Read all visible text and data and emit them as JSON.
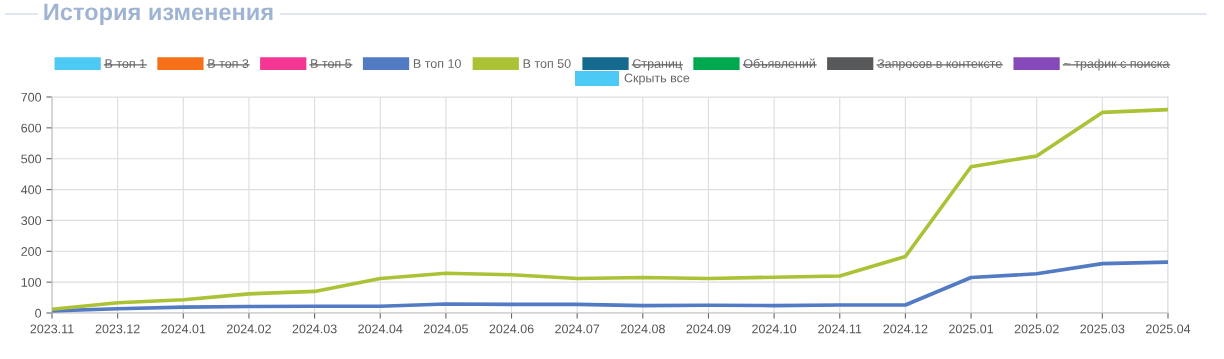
{
  "chart_data": {
    "type": "line",
    "title": "История изменения",
    "categories": [
      "2023.11",
      "2023.12",
      "2024.01",
      "2024.02",
      "2024.03",
      "2024.04",
      "2024.05",
      "2024.06",
      "2024.07",
      "2024.08",
      "2024.09",
      "2024.10",
      "2024.11",
      "2024.12",
      "2025.01",
      "2025.02",
      "2025.03",
      "2025.04"
    ],
    "series": [
      {
        "name": "В топ 1",
        "color": "#4dc9f6",
        "values": [
          null,
          null,
          null,
          null,
          null,
          null,
          null,
          null,
          null,
          null,
          null,
          null,
          null,
          null,
          null,
          null,
          null,
          null
        ]
      },
      {
        "name": "В топ 3",
        "color": "#f67019",
        "values": [
          null,
          null,
          null,
          null,
          null,
          null,
          null,
          null,
          null,
          null,
          null,
          null,
          null,
          null,
          null,
          null,
          null,
          null
        ]
      },
      {
        "name": "В топ 5",
        "color": "#f53794",
        "values": [
          null,
          null,
          null,
          null,
          null,
          null,
          null,
          null,
          null,
          null,
          null,
          null,
          null,
          null,
          null,
          null,
          null,
          null
        ]
      },
      {
        "name": "В топ 10",
        "color": "#537bc4",
        "values": [
          7,
          14,
          19,
          21,
          22,
          22,
          29,
          28,
          28,
          24,
          25,
          24,
          26,
          26,
          115,
          127,
          160,
          165
        ]
      },
      {
        "name": "В топ 50",
        "color": "#acc236",
        "values": [
          12,
          33,
          43,
          62,
          70,
          112,
          129,
          124,
          112,
          115,
          112,
          116,
          120,
          183,
          474,
          509,
          650,
          659
        ]
      },
      {
        "name": "Страниц",
        "color": "#166a8f",
        "values": [
          null,
          null,
          null,
          null,
          null,
          null,
          null,
          null,
          null,
          null,
          null,
          null,
          null,
          null,
          null,
          null,
          null,
          null
        ]
      },
      {
        "name": "Объявлений",
        "color": "#00a950",
        "values": [
          null,
          null,
          null,
          null,
          null,
          null,
          null,
          null,
          null,
          null,
          null,
          null,
          null,
          null,
          null,
          null,
          null,
          null
        ]
      },
      {
        "name": "Запросов в контексте",
        "color": "#58595b",
        "values": [
          null,
          null,
          null,
          null,
          null,
          null,
          null,
          null,
          null,
          null,
          null,
          null,
          null,
          null,
          null,
          null,
          null,
          null
        ]
      },
      {
        "name": "~ трафик с поиска",
        "color": "#8549ba",
        "values": [
          null,
          null,
          null,
          null,
          null,
          null,
          null,
          null,
          null,
          null,
          null,
          null,
          null,
          null,
          null,
          null,
          null,
          null
        ]
      }
    ],
    "annotations": [
      "Скрыть все"
    ],
    "ylim": [
      0,
      700
    ],
    "yticks": [
      0,
      100,
      200,
      300,
      400,
      500,
      600,
      700
    ],
    "grid": true,
    "legend": "top",
    "marker": "none",
    "line_style": "solid"
  }
}
